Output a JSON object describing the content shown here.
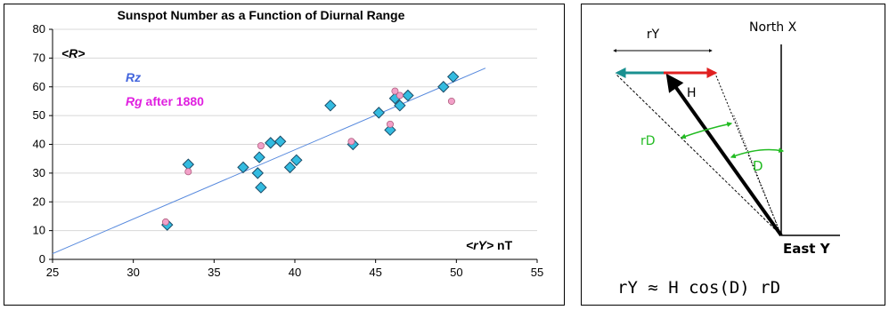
{
  "chart_data": {
    "type": "scatter",
    "title": "Sunspot Number as a Function of Diurnal Range",
    "xlabel": "<rY> nT",
    "xlabel_parts": {
      "italic": "<rY>",
      "unit": " nT"
    },
    "ylabel": "<R>",
    "xlim": [
      25,
      55
    ],
    "ylim": [
      0,
      80
    ],
    "xticks": [
      "25",
      "30",
      "35",
      "40",
      "45",
      "50",
      "55"
    ],
    "yticks": [
      "0",
      "10",
      "20",
      "30",
      "40",
      "50",
      "60",
      "70",
      "80"
    ],
    "grid": "horizontal",
    "series": [
      {
        "name": "Rz",
        "marker": "diamond",
        "color": "#33bbe0",
        "label_color": "#4466dd",
        "x": [
          32.1,
          33.4,
          36.8,
          37.7,
          37.8,
          37.9,
          38.5,
          39.1,
          39.7,
          40.1,
          42.2,
          43.6,
          45.2,
          45.9,
          46.2,
          46.5,
          47.0,
          49.2,
          49.8
        ],
        "y": [
          12,
          33,
          32,
          30,
          35.5,
          25,
          40.5,
          41,
          32,
          34.5,
          53.5,
          40,
          51,
          45,
          56,
          53.5,
          57,
          60,
          63.5
        ]
      },
      {
        "name": "Rg after 1880",
        "name_parts": {
          "italic": "Rg",
          "rest": " after 1880"
        },
        "marker": "circle",
        "color": "#f2a0c8",
        "label_color": "#e020e0",
        "x": [
          32.0,
          33.4,
          37.9,
          43.5,
          45.9,
          46.2,
          46.5,
          49.7
        ],
        "y": [
          13,
          30.5,
          39.5,
          41,
          47,
          58.5,
          57,
          55
        ]
      }
    ],
    "trendline": {
      "x": [
        25,
        51.8
      ],
      "y": [
        2,
        66.5
      ],
      "color": "#5588dd"
    }
  },
  "diagram": {
    "labels": {
      "north": "North X",
      "east": "East Y",
      "ry": "rY",
      "h": "H",
      "rd": "rD",
      "d": "D"
    },
    "formula": "rY ≈ H cos(D) rD",
    "colors": {
      "teal_arrow": "#1a9090",
      "red_arrow": "#e02020",
      "green": "#22bb22",
      "black": "#000000"
    }
  }
}
